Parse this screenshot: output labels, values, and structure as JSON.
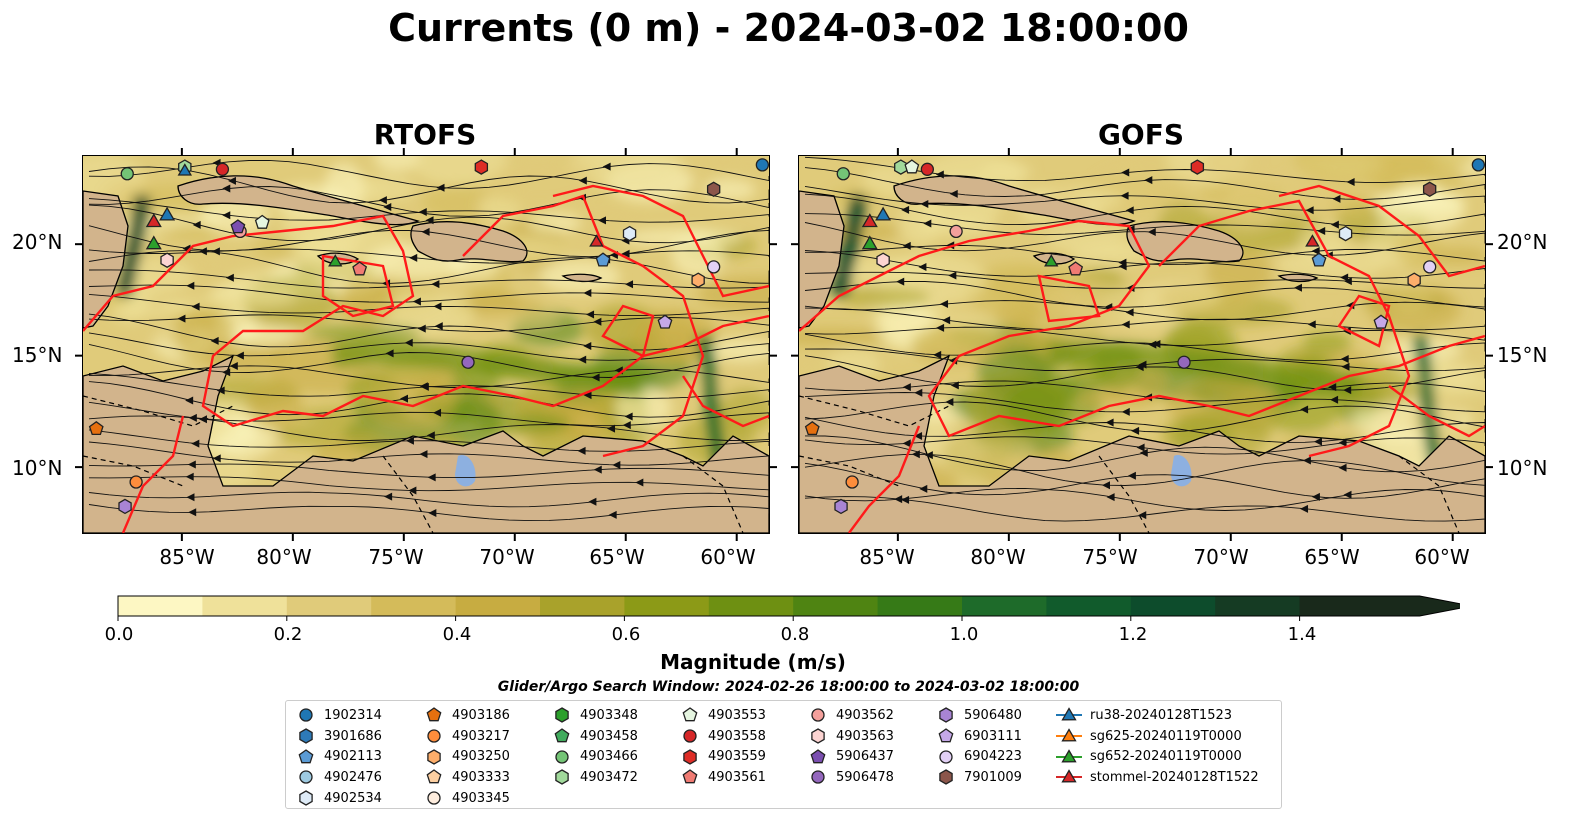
{
  "title": "Currents (0 m) - 2024-03-02 18:00:00",
  "panels": [
    {
      "title": "RTOFS"
    },
    {
      "title": "GOFS"
    }
  ],
  "axes": {
    "x_ticks": [
      "85°W",
      "80°W",
      "75°W",
      "70°W",
      "65°W",
      "60°W"
    ],
    "x_values": [
      -85,
      -80,
      -75,
      -70,
      -65,
      -60
    ],
    "y_ticks": [
      "20°N",
      "15°N",
      "10°N"
    ],
    "y_values": [
      20,
      15,
      10
    ],
    "lon_range": [
      -89.5,
      -58.5
    ],
    "lat_range": [
      7,
      24
    ]
  },
  "colorbar": {
    "label": "Magnitude (m/s)",
    "tick_labels": [
      "0.0",
      "0.2",
      "0.4",
      "0.6",
      "0.8",
      "1.0",
      "1.2",
      "1.4"
    ],
    "tick_values": [
      0,
      0.2,
      0.4,
      0.6,
      0.8,
      1.0,
      1.2,
      1.4
    ],
    "levels": [
      0,
      0.1,
      0.2,
      0.3,
      0.4,
      0.5,
      0.6,
      0.7,
      0.8,
      0.9,
      1.0,
      1.1,
      1.2,
      1.3,
      1.4,
      1.5
    ],
    "colors": [
      "#fdf7c3",
      "#efe19a",
      "#e0cb7a",
      "#d4bb5a",
      "#c7ac41",
      "#a9a22b",
      "#8c9a17",
      "#6e9012",
      "#4f8412",
      "#367a17",
      "#1e6b2a",
      "#115b2c",
      "#0d4c2c",
      "#153b23",
      "#19291b"
    ],
    "extend": "max"
  },
  "search_window": "Glider/Argo Search Window: 2024-02-26 18:00:00 to 2024-03-02 18:00:00",
  "legend": {
    "columns": [
      [
        {
          "label": "1902314",
          "marker": "circle",
          "color": "#1f77b4"
        },
        {
          "label": "3901686",
          "marker": "hexagon",
          "color": "#2e7ab8"
        },
        {
          "label": "4902113",
          "marker": "pentagon",
          "color": "#5b9bd5"
        },
        {
          "label": "4902476",
          "marker": "circle",
          "color": "#9ecae1"
        },
        {
          "label": "4902534",
          "marker": "hexagon",
          "color": "#deebf7"
        }
      ],
      [
        {
          "label": "4903186",
          "marker": "pentagon",
          "color": "#e6700f"
        },
        {
          "label": "4903217",
          "marker": "circle",
          "color": "#fd8d3c"
        },
        {
          "label": "4903250",
          "marker": "hexagon",
          "color": "#fdae6b"
        },
        {
          "label": "4903333",
          "marker": "pentagon",
          "color": "#fdd0a2"
        },
        {
          "label": "4903345",
          "marker": "circle",
          "color": "#feedde"
        }
      ],
      [
        {
          "label": "4903348",
          "marker": "hexagon",
          "color": "#2ca02c"
        },
        {
          "label": "4903458",
          "marker": "pentagon",
          "color": "#41ab5d"
        },
        {
          "label": "4903466",
          "marker": "circle",
          "color": "#74c476"
        },
        {
          "label": "4903472",
          "marker": "hexagon",
          "color": "#a1d99b"
        }
      ],
      [
        {
          "label": "4903553",
          "marker": "pentagon",
          "color": "#e5f5e0"
        },
        {
          "label": "4903558",
          "marker": "circle",
          "color": "#d62728"
        },
        {
          "label": "4903559",
          "marker": "hexagon",
          "color": "#de2d26"
        },
        {
          "label": "4903561",
          "marker": "pentagon",
          "color": "#f07b73"
        }
      ],
      [
        {
          "label": "4903562",
          "marker": "circle",
          "color": "#f4a09c"
        },
        {
          "label": "4903563",
          "marker": "hexagon",
          "color": "#fcd4d2"
        },
        {
          "label": "5906437",
          "marker": "pentagon",
          "color": "#7b4fb0"
        },
        {
          "label": "5906478",
          "marker": "circle",
          "color": "#9467bd"
        }
      ],
      [
        {
          "label": "5906480",
          "marker": "hexagon",
          "color": "#a884d4"
        },
        {
          "label": "6903111",
          "marker": "pentagon",
          "color": "#c5a8e8"
        },
        {
          "label": "6904223",
          "marker": "circle",
          "color": "#e2d0f5"
        },
        {
          "label": "7901009",
          "marker": "hexagon",
          "color": "#8c564b"
        }
      ],
      [
        {
          "label": "ru38-20240128T1523",
          "marker": "triangle-line",
          "color": "#1f77b4"
        },
        {
          "label": "sg625-20240119T0000",
          "marker": "triangle-line",
          "color": "#ff7f0e"
        },
        {
          "label": "sg652-20240119T0000",
          "marker": "triangle-line",
          "color": "#2ca02c"
        },
        {
          "label": "stommel-20240128T1522",
          "marker": "triangle-line",
          "color": "#d62728"
        }
      ]
    ]
  }
}
